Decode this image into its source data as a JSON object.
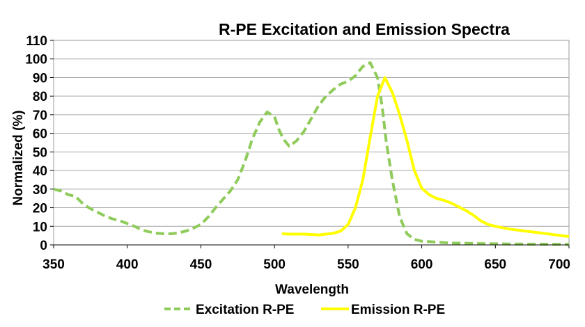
{
  "chart_data": {
    "type": "line",
    "title": "R-PE Excitation and Emission Spectra",
    "xlabel": "Wavelength",
    "ylabel": "Normalized (%)",
    "xlim": [
      350,
      700
    ],
    "ylim": [
      0,
      110
    ],
    "x_ticks": [
      "350",
      "400",
      "450",
      "500",
      "550",
      "600",
      "650",
      "700"
    ],
    "y_ticks": [
      "0",
      "10",
      "20",
      "30",
      "40",
      "50",
      "60",
      "70",
      "80",
      "90",
      "100",
      "110"
    ],
    "grid": "horizontal",
    "legend_position": "bottom",
    "series": [
      {
        "name": "Excitation R-PE",
        "color": "#8fcb5b",
        "line_style": "dashed",
        "points": [
          [
            350,
            30
          ],
          [
            355,
            29
          ],
          [
            360,
            27
          ],
          [
            365,
            26
          ],
          [
            370,
            22
          ],
          [
            375,
            19.5
          ],
          [
            380,
            17.5
          ],
          [
            385,
            15.5
          ],
          [
            390,
            14
          ],
          [
            395,
            13
          ],
          [
            400,
            11.5
          ],
          [
            405,
            10
          ],
          [
            410,
            8
          ],
          [
            415,
            7
          ],
          [
            420,
            6.3
          ],
          [
            425,
            6
          ],
          [
            430,
            6
          ],
          [
            435,
            6.5
          ],
          [
            440,
            7.5
          ],
          [
            445,
            9
          ],
          [
            450,
            11
          ],
          [
            455,
            15
          ],
          [
            460,
            20
          ],
          [
            465,
            24.5
          ],
          [
            470,
            29
          ],
          [
            475,
            35
          ],
          [
            480,
            45
          ],
          [
            485,
            57
          ],
          [
            490,
            66
          ],
          [
            495,
            71.5
          ],
          [
            500,
            69
          ],
          [
            503,
            62
          ],
          [
            506,
            57
          ],
          [
            510,
            53
          ],
          [
            515,
            56
          ],
          [
            520,
            61
          ],
          [
            525,
            68
          ],
          [
            530,
            75
          ],
          [
            535,
            80
          ],
          [
            540,
            83.5
          ],
          [
            545,
            86.5
          ],
          [
            550,
            88
          ],
          [
            555,
            91
          ],
          [
            560,
            96
          ],
          [
            565,
            98
          ],
          [
            570,
            90
          ],
          [
            573,
            75
          ],
          [
            576,
            55
          ],
          [
            580,
            35
          ],
          [
            585,
            15
          ],
          [
            590,
            6
          ],
          [
            595,
            3
          ],
          [
            600,
            2
          ],
          [
            610,
            1.5
          ],
          [
            620,
            1
          ],
          [
            640,
            0.7
          ],
          [
            660,
            0.5
          ],
          [
            680,
            0.4
          ],
          [
            700,
            0.3
          ]
        ]
      },
      {
        "name": "Emission R-PE",
        "color": "#ffff00",
        "line_style": "solid",
        "points": [
          [
            505,
            6
          ],
          [
            510,
            5.8
          ],
          [
            520,
            5.8
          ],
          [
            530,
            5.4
          ],
          [
            540,
            6.2
          ],
          [
            545,
            7.5
          ],
          [
            550,
            11
          ],
          [
            555,
            20
          ],
          [
            560,
            35
          ],
          [
            565,
            58
          ],
          [
            570,
            80
          ],
          [
            575,
            90
          ],
          [
            580,
            82
          ],
          [
            585,
            70
          ],
          [
            590,
            56
          ],
          [
            595,
            40
          ],
          [
            600,
            30.5
          ],
          [
            605,
            27
          ],
          [
            610,
            25
          ],
          [
            615,
            24
          ],
          [
            620,
            22.5
          ],
          [
            625,
            20.5
          ],
          [
            630,
            18.5
          ],
          [
            635,
            16
          ],
          [
            640,
            13
          ],
          [
            645,
            11
          ],
          [
            650,
            10
          ],
          [
            660,
            8.5
          ],
          [
            670,
            7.5
          ],
          [
            680,
            6.5
          ],
          [
            690,
            5.5
          ],
          [
            700,
            4.5
          ]
        ]
      }
    ]
  }
}
